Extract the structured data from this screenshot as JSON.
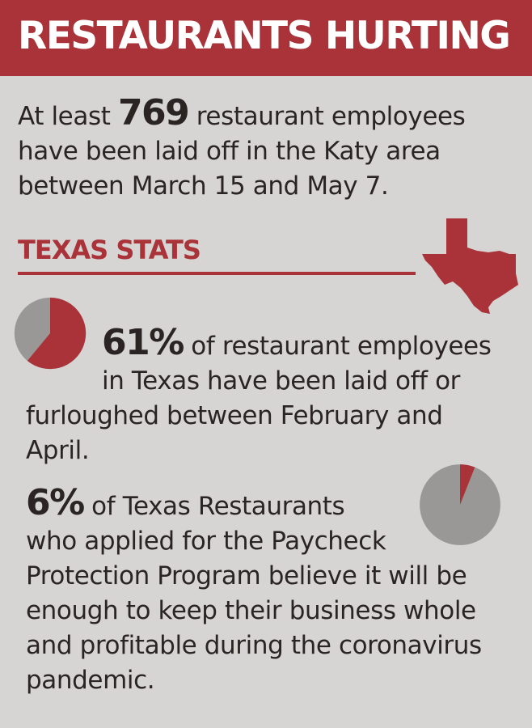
{
  "header": {
    "title": "RESTAURANTS HURTING"
  },
  "intro": {
    "prefix": "At least",
    "number": "769",
    "line1_suffix": "restaurant employees",
    "line2": "have been laid off in the Katy area",
    "line3": "between March 15 and May 7."
  },
  "section": {
    "title": "TEXAS STATS"
  },
  "stats": [
    {
      "percent": "61%",
      "line1_suffix": "of restaurant employees",
      "line2": "in Texas have been laid off or",
      "line3": "furloughed between February and",
      "line4": "April.",
      "fraction": 0.61
    },
    {
      "percent": "6%",
      "line1_suffix": "of Texas Restaurants",
      "line2": "who applied for the Paycheck",
      "line3": "Protection Program believe it will be",
      "line4": "enough to keep their business whole",
      "line5": "and profitable during the coronavirus",
      "line6": "pandemic.",
      "fraction": 0.06
    }
  ],
  "colors": {
    "accent": "#a93339",
    "pie_rest": "#9a9896",
    "background": "#d6d5d3"
  },
  "icons": {
    "map": "texas-map-icon"
  }
}
